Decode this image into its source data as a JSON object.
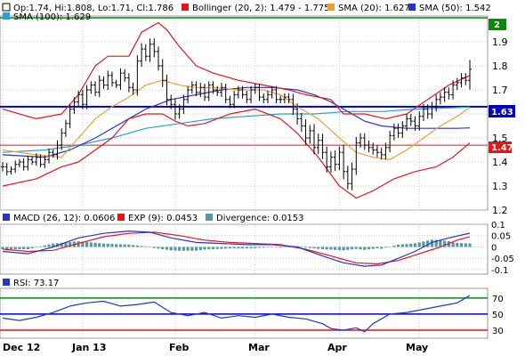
{
  "colors": {
    "ohlc": "#000000",
    "bollinger": "#e8141a",
    "sma20": "#f0a030",
    "sma50": "#2a33cc",
    "sma100": "#22a3d8",
    "macd": "#2a33cc",
    "exp9": "#e8141a",
    "divergence": "#4f9aa3",
    "rsi": "#2a33cc",
    "level_green": "#0a8a0a",
    "level_blue": "#0000cc",
    "level_red": "#e8141a",
    "grid": "#c8c8c8",
    "badge_red": "#e8141a",
    "badge_blue": "#0000cc",
    "badge_green": "#0a8a0a"
  },
  "price_legend": {
    "ohlc": "Op:1.74, Hi:1.808, Lo:1.71, Cl:1.786",
    "bollinger": "Bollinger (20, 2): 1.479 - 1.775",
    "sma20": "SMA (20): 1.627",
    "sma50": "SMA (50): 1.542",
    "sma100": "SMA (100): 1.629"
  },
  "macd_legend": {
    "macd": "MACD (26, 12): 0.0606",
    "exp": "EXP (9): 0.0453",
    "divergence": "Divergence: 0.0153"
  },
  "rsi_legend": {
    "rsi": "RSI: 73.17"
  },
  "badges": {
    "level_2": "2",
    "level_163": "1.63",
    "level_147": "1.47"
  },
  "chart_data": [
    {
      "type": "ohlc",
      "x_tick_labels": [
        "Dec 12",
        "Jan 13",
        "Feb",
        "Mar",
        "Apr",
        "May"
      ],
      "y_tick_labels": [
        "1.2",
        "1.3",
        "1.4",
        "1.5",
        "1.6",
        "1.7",
        "1.8",
        "1.9"
      ],
      "ylim": [
        1.2,
        2.0
      ],
      "grid": true,
      "horizontal_levels": [
        {
          "value": 2.0,
          "label": "2",
          "color": "green"
        },
        {
          "value": 1.63,
          "label": "1.63",
          "color": "blue"
        },
        {
          "value": 1.47,
          "label": "1.47",
          "color": "red"
        }
      ],
      "closes": [
        1.38,
        1.36,
        1.37,
        1.39,
        1.4,
        1.38,
        1.41,
        1.4,
        1.42,
        1.39,
        1.41,
        1.44,
        1.43,
        1.47,
        1.52,
        1.56,
        1.62,
        1.65,
        1.68,
        1.64,
        1.7,
        1.72,
        1.69,
        1.74,
        1.72,
        1.76,
        1.73,
        1.72,
        1.77,
        1.75,
        1.71,
        1.7,
        1.82,
        1.87,
        1.84,
        1.89,
        1.86,
        1.8,
        1.74,
        1.66,
        1.64,
        1.6,
        1.62,
        1.66,
        1.7,
        1.72,
        1.69,
        1.71,
        1.67,
        1.72,
        1.7,
        1.69,
        1.71,
        1.66,
        1.64,
        1.68,
        1.7,
        1.68,
        1.66,
        1.7,
        1.71,
        1.67,
        1.66,
        1.68,
        1.7,
        1.66,
        1.66,
        1.67,
        1.66,
        1.62,
        1.58,
        1.55,
        1.5,
        1.53,
        1.46,
        1.49,
        1.44,
        1.38,
        1.42,
        1.39,
        1.44,
        1.36,
        1.31,
        1.37,
        1.48,
        1.5,
        1.47,
        1.46,
        1.45,
        1.44,
        1.43,
        1.46,
        1.51,
        1.54,
        1.52,
        1.55,
        1.58,
        1.57,
        1.55,
        1.59,
        1.62,
        1.6,
        1.63,
        1.66,
        1.67,
        1.69,
        1.68,
        1.72,
        1.73,
        1.75,
        1.74,
        1.786
      ],
      "ranges": [
        0.05,
        0.04,
        0.03,
        0.04,
        0.03,
        0.04,
        0.04,
        0.03,
        0.04,
        0.03,
        0.04,
        0.04,
        0.03,
        0.05,
        0.05,
        0.04,
        0.05,
        0.05,
        0.04,
        0.05,
        0.05,
        0.04,
        0.04,
        0.05,
        0.04,
        0.05,
        0.04,
        0.03,
        0.05,
        0.04,
        0.05,
        0.05,
        0.06,
        0.06,
        0.05,
        0.06,
        0.06,
        0.05,
        0.07,
        0.06,
        0.05,
        0.06,
        0.05,
        0.05,
        0.04,
        0.04,
        0.04,
        0.05,
        0.04,
        0.04,
        0.04,
        0.04,
        0.05,
        0.04,
        0.04,
        0.04,
        0.04,
        0.04,
        0.04,
        0.04,
        0.04,
        0.04,
        0.04,
        0.04,
        0.04,
        0.04,
        0.04,
        0.04,
        0.04,
        0.06,
        0.06,
        0.06,
        0.07,
        0.06,
        0.07,
        0.07,
        0.07,
        0.06,
        0.06,
        0.07,
        0.06,
        0.08,
        0.06,
        0.07,
        0.06,
        0.05,
        0.05,
        0.05,
        0.05,
        0.05,
        0.05,
        0.05,
        0.05,
        0.05,
        0.05,
        0.05,
        0.05,
        0.05,
        0.05,
        0.05,
        0.05,
        0.05,
        0.05,
        0.05,
        0.05,
        0.05,
        0.05,
        0.05,
        0.05,
        0.05,
        0.05,
        0.098
      ],
      "series_overlays": {
        "bollinger_upper": [
          [
            0,
            1.62
          ],
          [
            8,
            1.58
          ],
          [
            14,
            1.6
          ],
          [
            18,
            1.68
          ],
          [
            22,
            1.8
          ],
          [
            25,
            1.84
          ],
          [
            30,
            1.84
          ],
          [
            33,
            1.94
          ],
          [
            37,
            1.98
          ],
          [
            39,
            1.95
          ],
          [
            42,
            1.88
          ],
          [
            46,
            1.8
          ],
          [
            50,
            1.77
          ],
          [
            56,
            1.74
          ],
          [
            62,
            1.72
          ],
          [
            68,
            1.7
          ],
          [
            72,
            1.68
          ],
          [
            78,
            1.66
          ],
          [
            81,
            1.6
          ],
          [
            86,
            1.6
          ],
          [
            91,
            1.58
          ],
          [
            96,
            1.6
          ],
          [
            101,
            1.66
          ],
          [
            106,
            1.72
          ],
          [
            111,
            1.76
          ]
        ],
        "bollinger_lower": [
          [
            0,
            1.3
          ],
          [
            8,
            1.33
          ],
          [
            14,
            1.38
          ],
          [
            18,
            1.4
          ],
          [
            22,
            1.45
          ],
          [
            26,
            1.5
          ],
          [
            30,
            1.58
          ],
          [
            34,
            1.6
          ],
          [
            38,
            1.6
          ],
          [
            41,
            1.57
          ],
          [
            44,
            1.55
          ],
          [
            48,
            1.56
          ],
          [
            54,
            1.6
          ],
          [
            60,
            1.62
          ],
          [
            66,
            1.58
          ],
          [
            70,
            1.52
          ],
          [
            75,
            1.42
          ],
          [
            80,
            1.3
          ],
          [
            84,
            1.25
          ],
          [
            88,
            1.28
          ],
          [
            93,
            1.33
          ],
          [
            98,
            1.36
          ],
          [
            103,
            1.38
          ],
          [
            107,
            1.42
          ],
          [
            111,
            1.48
          ]
        ],
        "sma20": [
          [
            0,
            1.45
          ],
          [
            8,
            1.43
          ],
          [
            14,
            1.42
          ],
          [
            18,
            1.5
          ],
          [
            22,
            1.58
          ],
          [
            26,
            1.63
          ],
          [
            30,
            1.67
          ],
          [
            34,
            1.72
          ],
          [
            38,
            1.74
          ],
          [
            42,
            1.72
          ],
          [
            46,
            1.71
          ],
          [
            50,
            1.71
          ],
          [
            56,
            1.7
          ],
          [
            62,
            1.7
          ],
          [
            66,
            1.68
          ],
          [
            70,
            1.63
          ],
          [
            75,
            1.58
          ],
          [
            80,
            1.5
          ],
          [
            84,
            1.44
          ],
          [
            88,
            1.42
          ],
          [
            92,
            1.41
          ],
          [
            96,
            1.45
          ],
          [
            100,
            1.5
          ],
          [
            104,
            1.55
          ],
          [
            108,
            1.59
          ],
          [
            111,
            1.627
          ]
        ],
        "sma50": [
          [
            0,
            1.43
          ],
          [
            10,
            1.42
          ],
          [
            16,
            1.45
          ],
          [
            22,
            1.5
          ],
          [
            28,
            1.56
          ],
          [
            34,
            1.62
          ],
          [
            40,
            1.66
          ],
          [
            46,
            1.68
          ],
          [
            52,
            1.7
          ],
          [
            58,
            1.71
          ],
          [
            64,
            1.71
          ],
          [
            70,
            1.7
          ],
          [
            74,
            1.68
          ],
          [
            78,
            1.65
          ],
          [
            82,
            1.61
          ],
          [
            86,
            1.57
          ],
          [
            90,
            1.55
          ],
          [
            96,
            1.54
          ],
          [
            102,
            1.54
          ],
          [
            108,
            1.54
          ],
          [
            111,
            1.542
          ]
        ],
        "sma100": [
          [
            0,
            1.44
          ],
          [
            10,
            1.45
          ],
          [
            18,
            1.47
          ],
          [
            26,
            1.5
          ],
          [
            34,
            1.54
          ],
          [
            42,
            1.56
          ],
          [
            50,
            1.58
          ],
          [
            58,
            1.59
          ],
          [
            66,
            1.6
          ],
          [
            74,
            1.6
          ],
          [
            82,
            1.61
          ],
          [
            90,
            1.61
          ],
          [
            98,
            1.62
          ],
          [
            106,
            1.625
          ],
          [
            111,
            1.629
          ]
        ]
      }
    },
    {
      "type": "line",
      "y_tick_labels": [
        "0.1",
        "0.05",
        "0",
        "-0.05",
        "-0.1"
      ],
      "ylim": [
        -0.12,
        0.1
      ],
      "series": [
        {
          "name": "MACD (26, 12)",
          "points": [
            [
              0,
              -0.02
            ],
            [
              6,
              -0.03
            ],
            [
              12,
              0.0
            ],
            [
              18,
              0.04
            ],
            [
              24,
              0.06
            ],
            [
              30,
              0.07
            ],
            [
              35,
              0.065
            ],
            [
              40,
              0.04
            ],
            [
              46,
              0.02
            ],
            [
              52,
              0.015
            ],
            [
              58,
              0.01
            ],
            [
              64,
              0.01
            ],
            [
              70,
              0.0
            ],
            [
              76,
              -0.04
            ],
            [
              81,
              -0.07
            ],
            [
              86,
              -0.085
            ],
            [
              90,
              -0.08
            ],
            [
              94,
              -0.05
            ],
            [
              98,
              -0.02
            ],
            [
              102,
              0.02
            ],
            [
              106,
              0.04
            ],
            [
              111,
              0.0606
            ]
          ]
        },
        {
          "name": "EXP (9)",
          "points": [
            [
              0,
              -0.01
            ],
            [
              6,
              -0.02
            ],
            [
              12,
              -0.015
            ],
            [
              18,
              0.015
            ],
            [
              24,
              0.045
            ],
            [
              30,
              0.06
            ],
            [
              36,
              0.065
            ],
            [
              42,
              0.05
            ],
            [
              48,
              0.03
            ],
            [
              54,
              0.02
            ],
            [
              60,
              0.015
            ],
            [
              66,
              0.01
            ],
            [
              72,
              -0.01
            ],
            [
              78,
              -0.04
            ],
            [
              84,
              -0.07
            ],
            [
              89,
              -0.075
            ],
            [
              94,
              -0.06
            ],
            [
              99,
              -0.03
            ],
            [
              104,
              0.0
            ],
            [
              108,
              0.03
            ],
            [
              111,
              0.0453
            ]
          ]
        }
      ],
      "bars": {
        "name": "Divergence",
        "last": 0.0153
      }
    },
    {
      "type": "line",
      "y_tick_labels": [
        "70",
        "50",
        "30"
      ],
      "ylim": [
        20,
        82
      ],
      "levels": [
        70,
        50,
        30
      ],
      "series": [
        {
          "name": "RSI",
          "points": [
            [
              0,
              45
            ],
            [
              4,
              42
            ],
            [
              8,
              46
            ],
            [
              12,
              52
            ],
            [
              16,
              60
            ],
            [
              20,
              64
            ],
            [
              24,
              66
            ],
            [
              28,
              60
            ],
            [
              32,
              62
            ],
            [
              36,
              65
            ],
            [
              40,
              52
            ],
            [
              44,
              48
            ],
            [
              48,
              52
            ],
            [
              52,
              45
            ],
            [
              56,
              48
            ],
            [
              60,
              46
            ],
            [
              64,
              50
            ],
            [
              68,
              46
            ],
            [
              72,
              44
            ],
            [
              76,
              38
            ],
            [
              78,
              32
            ],
            [
              81,
              30
            ],
            [
              84,
              33
            ],
            [
              86,
              28
            ],
            [
              88,
              38
            ],
            [
              92,
              50
            ],
            [
              96,
              52
            ],
            [
              100,
              56
            ],
            [
              104,
              60
            ],
            [
              106,
              62
            ],
            [
              108,
              64
            ],
            [
              111,
              73.17
            ]
          ]
        }
      ]
    }
  ]
}
